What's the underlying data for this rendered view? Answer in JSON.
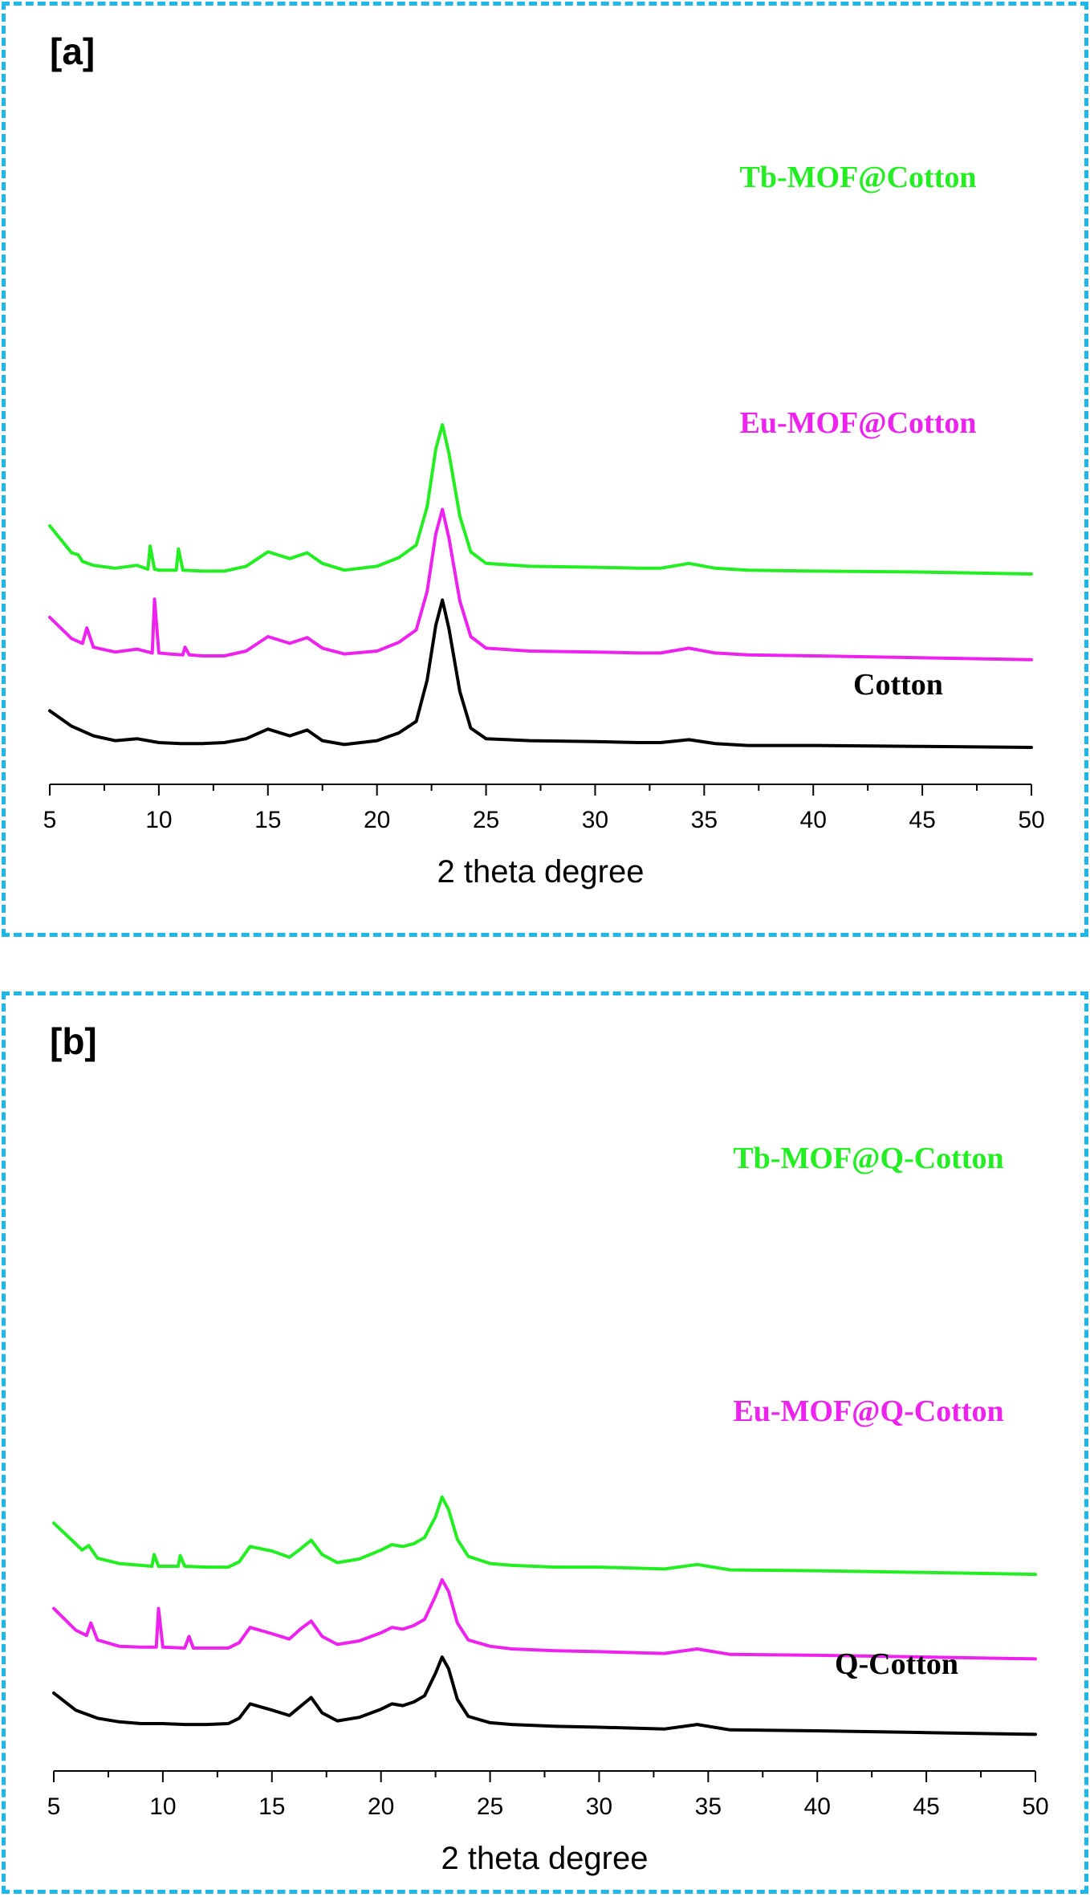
{
  "chart_data": [
    {
      "type": "line",
      "panel_label": "[a]",
      "xlabel": "2 theta degree",
      "ylabel": "",
      "xlim": [
        5,
        50
      ],
      "x_ticks": [
        5,
        10,
        15,
        20,
        25,
        30,
        35,
        40,
        45,
        50
      ],
      "y_ticks_shown": false,
      "series": [
        {
          "name": "Tb-MOF@Cotton",
          "color": "#22ee22",
          "x": [
            5,
            6,
            6.3,
            6.5,
            7,
            8,
            9,
            9.5,
            9.6,
            9.8,
            10,
            10.8,
            10.9,
            11.1,
            12,
            13,
            14,
            15,
            16,
            16.8,
            17.5,
            18.5,
            20,
            21,
            21.8,
            22.3,
            22.7,
            23,
            23.3,
            23.8,
            24.3,
            25,
            27,
            30,
            32,
            33,
            34.3,
            35.5,
            37,
            40,
            45,
            50
          ],
          "y": [
            2.25,
            1.97,
            1.95,
            1.88,
            1.84,
            1.81,
            1.84,
            1.8,
            2.04,
            1.8,
            1.79,
            1.79,
            2.01,
            1.79,
            1.78,
            1.78,
            1.83,
            1.98,
            1.91,
            1.97,
            1.86,
            1.79,
            1.83,
            1.92,
            2.05,
            2.45,
            3.05,
            3.3,
            3.0,
            2.35,
            1.98,
            1.86,
            1.83,
            1.82,
            1.81,
            1.81,
            1.86,
            1.81,
            1.79,
            1.78,
            1.77,
            1.75
          ]
        },
        {
          "name": "Eu-MOF@Cotton",
          "color": "#ee22ee",
          "x": [
            5,
            6,
            6.5,
            6.7,
            7,
            8,
            9,
            9.7,
            9.8,
            10,
            10.5,
            11.1,
            11.2,
            11.4,
            12,
            13,
            14,
            15,
            16,
            16.8,
            17.5,
            18.5,
            20,
            21,
            21.8,
            22.3,
            22.7,
            23,
            23.3,
            23.8,
            24.3,
            25,
            27,
            30,
            32,
            33,
            34.3,
            35.5,
            37,
            40,
            45,
            50
          ],
          "y": [
            1.3,
            1.08,
            1.03,
            1.19,
            0.99,
            0.94,
            0.97,
            0.93,
            1.49,
            0.93,
            0.92,
            0.91,
            0.99,
            0.91,
            0.9,
            0.9,
            0.95,
            1.1,
            1.03,
            1.09,
            0.98,
            0.92,
            0.95,
            1.04,
            1.17,
            1.57,
            2.17,
            2.42,
            2.12,
            1.47,
            1.1,
            0.98,
            0.95,
            0.94,
            0.93,
            0.93,
            0.98,
            0.93,
            0.91,
            0.9,
            0.88,
            0.86
          ]
        },
        {
          "name": "Cotton",
          "color": "#000000",
          "x": [
            5,
            6,
            7,
            8,
            9,
            10,
            11,
            12,
            13,
            14,
            15,
            16,
            16.8,
            17.5,
            18.5,
            20,
            21,
            21.8,
            22.3,
            22.7,
            23,
            23.3,
            23.8,
            24.3,
            25,
            27,
            30,
            32,
            33,
            34.3,
            35.5,
            37,
            40,
            45,
            50
          ],
          "y": [
            0.33,
            0.17,
            0.07,
            0.02,
            0.04,
            0.0,
            -0.01,
            -0.01,
            0.0,
            0.04,
            0.14,
            0.07,
            0.13,
            0.02,
            -0.02,
            0.02,
            0.1,
            0.22,
            0.65,
            1.22,
            1.48,
            1.18,
            0.53,
            0.15,
            0.04,
            0.02,
            0.01,
            0.0,
            0.0,
            0.03,
            -0.01,
            -0.03,
            -0.03,
            -0.04,
            -0.05
          ]
        }
      ]
    },
    {
      "type": "line",
      "panel_label": "[b]",
      "xlabel": "2 theta degree",
      "ylabel": "",
      "xlim": [
        5,
        50
      ],
      "x_ticks": [
        5,
        10,
        15,
        20,
        25,
        30,
        35,
        40,
        45,
        50
      ],
      "y_ticks_shown": false,
      "series": [
        {
          "name": "Tb-MOF@Q-Cotton",
          "color": "#22ee22",
          "x": [
            5,
            6,
            6.3,
            6.6,
            7,
            8,
            9,
            9.5,
            9.6,
            9.8,
            10.7,
            10.8,
            11,
            12,
            13,
            13.5,
            14,
            15,
            15.8,
            16.3,
            16.8,
            17.3,
            18,
            19,
            20,
            20.5,
            21,
            21.5,
            22,
            22.5,
            22.8,
            23.1,
            23.5,
            24,
            25,
            26,
            28,
            30,
            33,
            34.5,
            36,
            40,
            45,
            50
          ],
          "y": [
            2.23,
            2.0,
            1.93,
            1.98,
            1.84,
            1.78,
            1.76,
            1.75,
            1.88,
            1.75,
            1.75,
            1.87,
            1.75,
            1.74,
            1.74,
            1.8,
            1.97,
            1.92,
            1.85,
            1.94,
            2.04,
            1.88,
            1.79,
            1.83,
            1.93,
            1.99,
            1.97,
            2.0,
            2.07,
            2.3,
            2.52,
            2.38,
            2.05,
            1.86,
            1.78,
            1.76,
            1.74,
            1.74,
            1.72,
            1.77,
            1.71,
            1.7,
            1.68,
            1.66
          ]
        },
        {
          "name": "Eu-MOF@Q-Cotton",
          "color": "#ee22ee",
          "x": [
            5,
            6,
            6.5,
            6.7,
            7,
            8,
            9,
            9.7,
            9.8,
            10,
            11,
            11.2,
            11.4,
            12,
            13,
            13.5,
            14,
            15,
            15.8,
            16.3,
            16.8,
            17.3,
            18,
            19,
            20,
            20.5,
            21,
            21.5,
            22,
            22.5,
            22.8,
            23.1,
            23.5,
            24,
            25,
            26,
            28,
            30,
            33,
            34.5,
            36,
            40,
            45,
            50
          ],
          "y": [
            1.28,
            1.04,
            0.98,
            1.12,
            0.93,
            0.86,
            0.85,
            0.85,
            1.28,
            0.85,
            0.84,
            0.97,
            0.84,
            0.84,
            0.84,
            0.9,
            1.07,
            1.0,
            0.94,
            1.05,
            1.14,
            0.97,
            0.88,
            0.92,
            1.01,
            1.07,
            1.05,
            1.09,
            1.16,
            1.42,
            1.6,
            1.47,
            1.12,
            0.93,
            0.86,
            0.83,
            0.81,
            0.8,
            0.78,
            0.83,
            0.77,
            0.76,
            0.74,
            0.72
          ]
        },
        {
          "name": "Q-Cotton",
          "color": "#000000",
          "x": [
            5,
            6,
            7,
            8,
            9,
            10,
            11,
            12,
            13,
            13.5,
            14,
            15,
            15.8,
            16.3,
            16.8,
            17.3,
            18,
            19,
            20,
            20.5,
            21,
            21.5,
            22,
            22.5,
            22.8,
            23.1,
            23.5,
            24,
            25,
            26,
            28,
            30,
            33,
            34.5,
            36,
            40,
            45,
            50
          ],
          "y": [
            0.34,
            0.15,
            0.06,
            0.02,
            0.0,
            0.0,
            -0.01,
            -0.01,
            0.0,
            0.06,
            0.22,
            0.15,
            0.09,
            0.19,
            0.29,
            0.12,
            0.03,
            0.07,
            0.16,
            0.22,
            0.2,
            0.24,
            0.31,
            0.56,
            0.74,
            0.61,
            0.27,
            0.08,
            0.01,
            -0.01,
            -0.03,
            -0.04,
            -0.06,
            -0.01,
            -0.07,
            -0.08,
            -0.1,
            -0.12
          ]
        }
      ]
    }
  ]
}
